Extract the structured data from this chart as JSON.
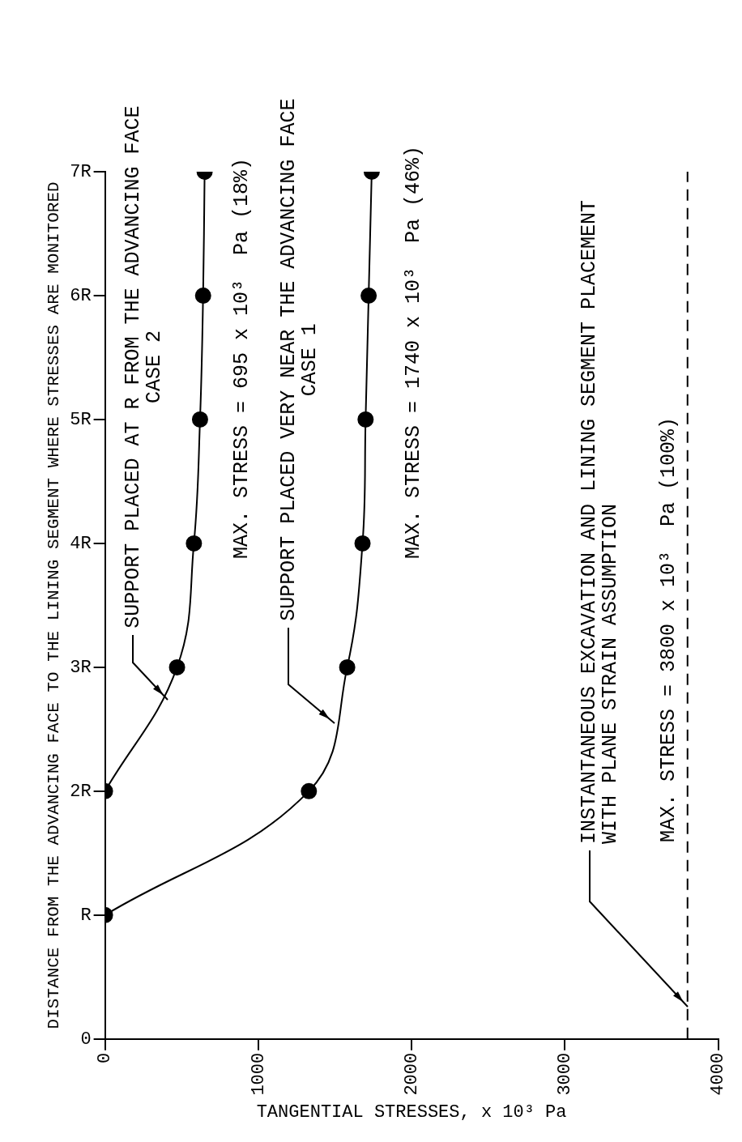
{
  "chart_data": {
    "type": "line",
    "xlabel": "TANGENTIAL STRESSES, x 10³ Pa",
    "ylabel": "DISTANCE FROM THE ADVANCING FACE TO THE LINING SEGMENT WHERE STRESSES ARE MONITORED",
    "xlim": [
      0,
      4000
    ],
    "xticks": [
      0,
      1000,
      2000,
      3000,
      4000
    ],
    "ylim": [
      0,
      7
    ],
    "yticks": [
      0,
      {
        "value": 1,
        "label": "R"
      },
      {
        "value": 2,
        "label": "2R"
      },
      {
        "value": 3,
        "label": "3R"
      },
      {
        "value": 4,
        "label": "4R"
      },
      {
        "value": 5,
        "label": "5R"
      },
      {
        "value": 6,
        "label": "6R"
      },
      {
        "value": 7,
        "label": "7R"
      }
    ],
    "series": [
      {
        "color": "#000000",
        "x": [
          0,
          470,
          580,
          620,
          640,
          650
        ],
        "values": [
          2,
          3,
          4,
          5,
          6,
          7
        ]
      },
      {
        "color": "#000000",
        "x": [
          0,
          1330,
          1580,
          1680,
          1700,
          1720,
          1740
        ],
        "values": [
          1,
          2,
          3,
          4,
          5,
          6,
          7
        ]
      }
    ],
    "ref_lines": [
      {
        "axis": "x",
        "value": 3800,
        "line_style": "dashed",
        "color": "#000000"
      }
    ],
    "annotations": [
      {
        "text": "SUPPORT PLACED AT R FROM THE ADVANCING FACE\nCASE 2",
        "x": 410,
        "y": 2.74
      },
      "MAX. STRESS = 695 x 10³  Pa (18%)",
      {
        "text": "SUPPORT PLACED VERY NEAR THE ADVANCING FACE\nCASE 1",
        "x": 1500,
        "y": 2.55
      },
      "MAX. STRESS = 1740 x 10³  Pa (46%)",
      {
        "text": "INSTANTANEOUS EXCAVATION AND LINING SEGMENT PLACEMENT\nWITH PLANE STRAIN ASSUMPTION",
        "x": 3800,
        "y": 0.26
      },
      "MAX. STRESS = 3800 x 10³  Pa (100%)"
    ],
    "marker": "circle",
    "grid": false,
    "legend": false
  }
}
